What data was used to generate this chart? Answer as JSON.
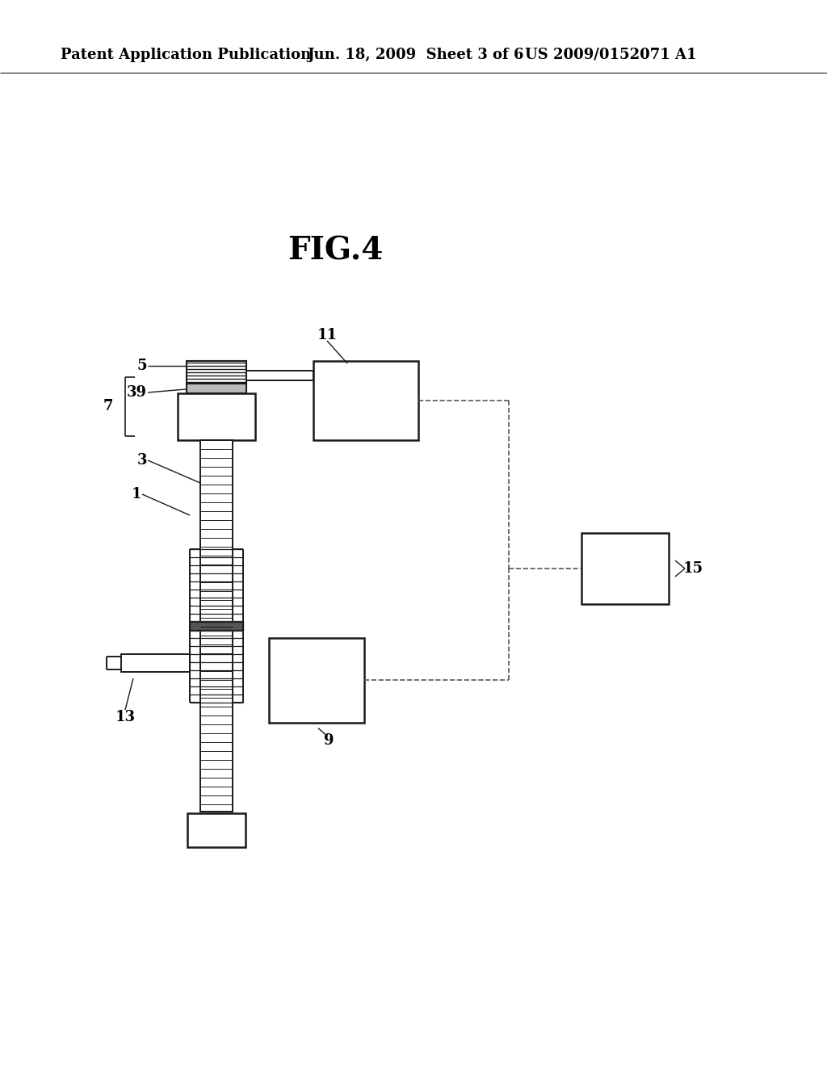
{
  "background_color": "#ffffff",
  "title": "FIG.4",
  "title_fontsize": 28,
  "header_left": "Patent Application Publication",
  "header_center": "Jun. 18, 2009  Sheet 3 of 6",
  "header_right": "US 2009/0152071 A1",
  "header_fontsize": 13,
  "line_color": "#1a1a1a",
  "dashed_color": "#555555"
}
